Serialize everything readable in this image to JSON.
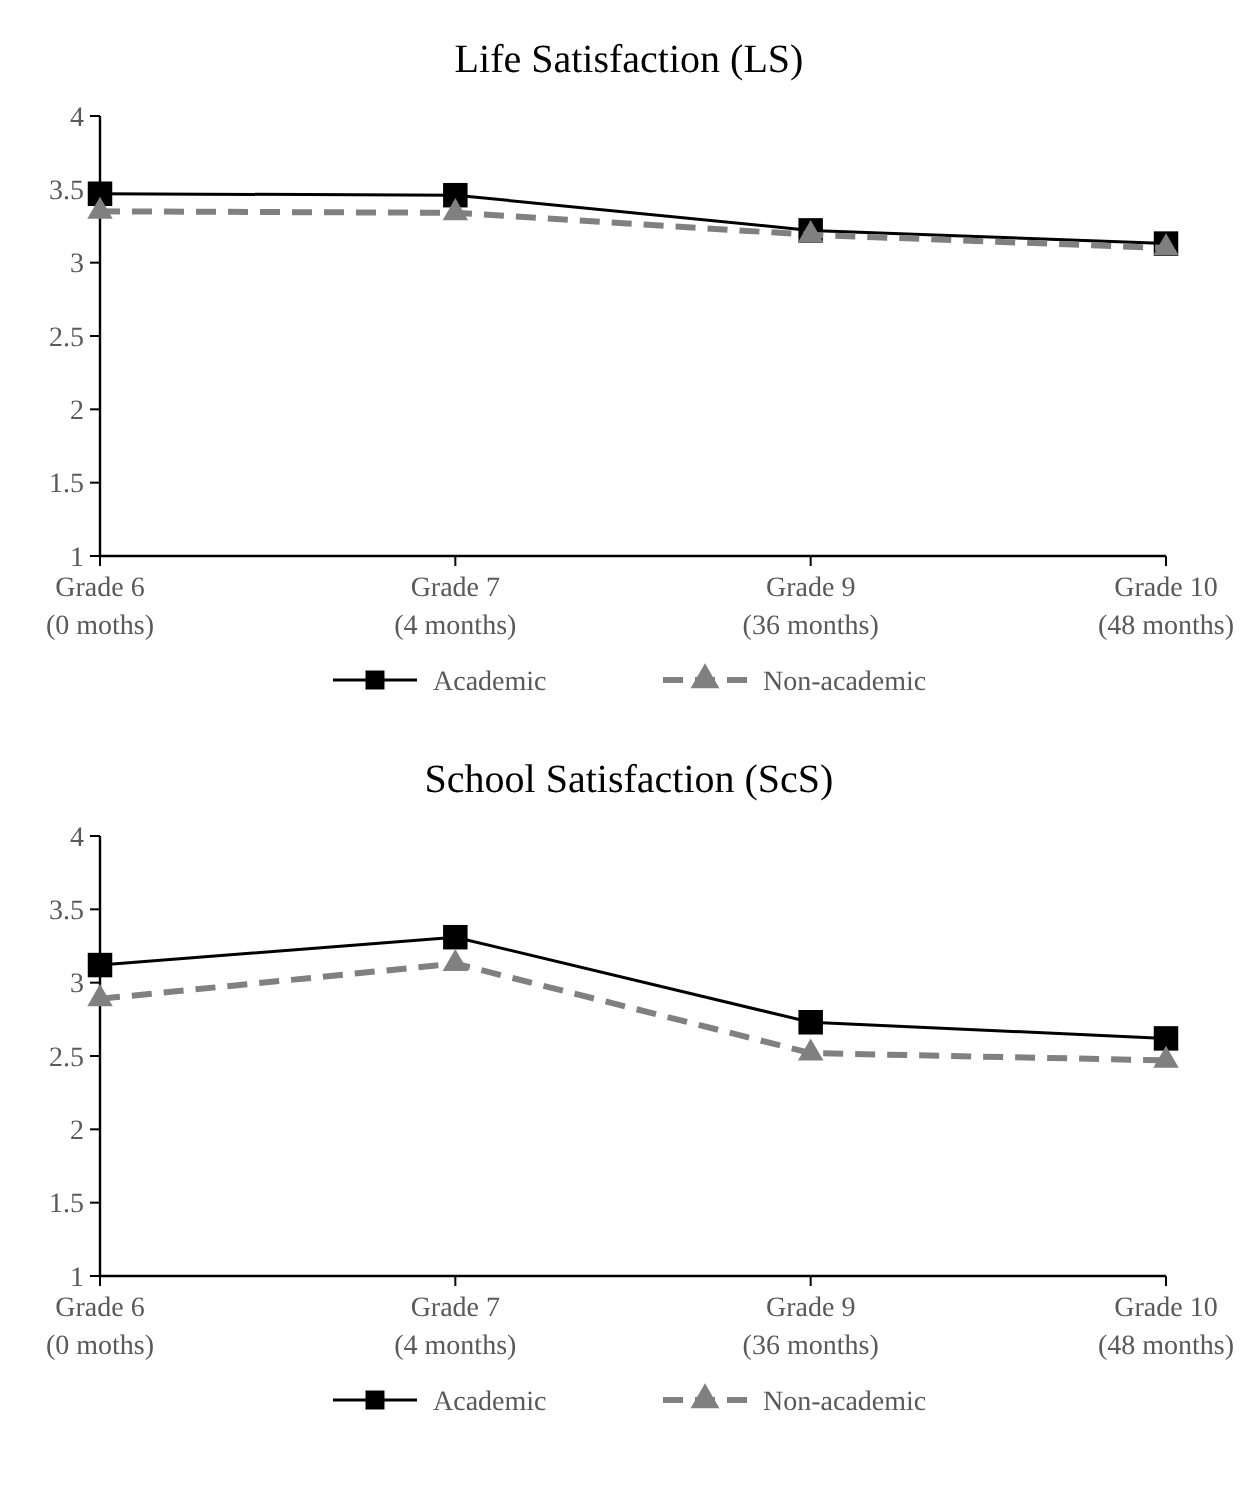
{
  "chart_data": [
    {
      "type": "line",
      "title": "Life Satisfaction (LS)",
      "categories": [
        "Grade 6\n(0 moths)",
        "Grade 7\n(4 months)",
        "Grade 9\n(36 months)",
        "Grade 10\n(48 months)"
      ],
      "ylim": [
        1,
        4
      ],
      "yticks": [
        1,
        1.5,
        2,
        2.5,
        3,
        3.5,
        4
      ],
      "legend": "bottom",
      "grid": false,
      "series": [
        {
          "name": "Academic",
          "color": "#000000",
          "marker": "square",
          "line_style": "solid",
          "values": [
            3.47,
            3.46,
            3.22,
            3.13
          ]
        },
        {
          "name": "Non-academic",
          "color": "#808080",
          "marker": "triangle",
          "line_style": "dashed",
          "values": [
            3.35,
            3.34,
            3.19,
            3.1
          ]
        }
      ]
    },
    {
      "type": "line",
      "title": "School Satisfaction (ScS)",
      "categories": [
        "Grade 6\n(0 moths)",
        "Grade 7\n(4 months)",
        "Grade 9\n(36 months)",
        "Grade 10\n(48 months)"
      ],
      "ylim": [
        1,
        4
      ],
      "yticks": [
        1,
        1.5,
        2,
        2.5,
        3,
        3.5,
        4
      ],
      "legend": "bottom",
      "grid": false,
      "series": [
        {
          "name": "Academic",
          "color": "#000000",
          "marker": "square",
          "line_style": "solid",
          "values": [
            3.12,
            3.31,
            2.73,
            2.62
          ]
        },
        {
          "name": "Non-academic",
          "color": "#808080",
          "marker": "triangle",
          "line_style": "dashed",
          "values": [
            2.89,
            3.13,
            2.52,
            2.47
          ]
        }
      ]
    }
  ]
}
